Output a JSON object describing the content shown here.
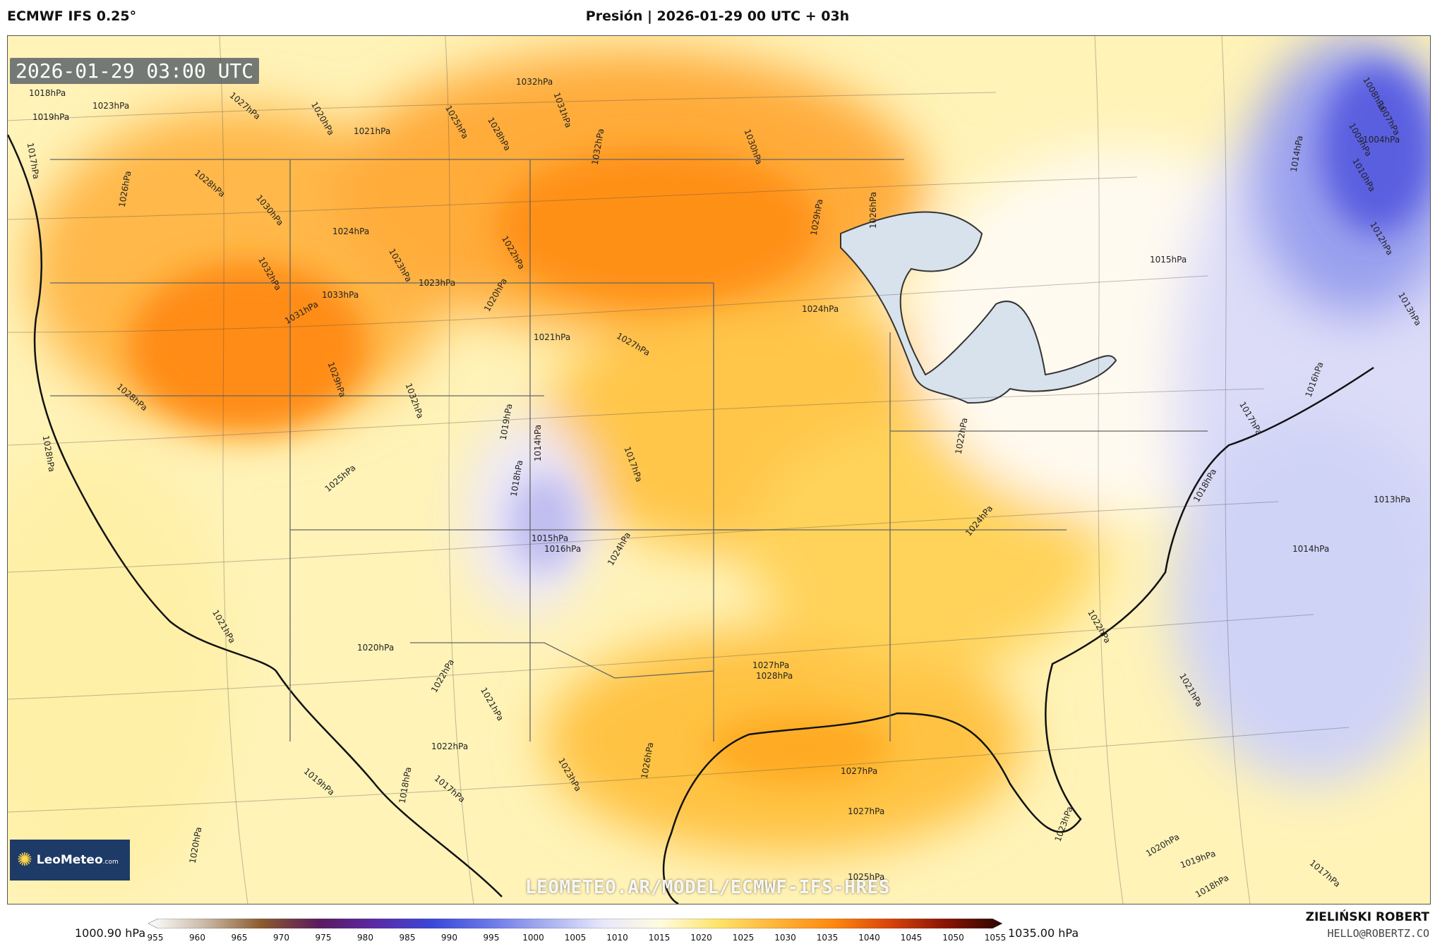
{
  "header": {
    "model": "ECMWF IFS 0.25°",
    "title": "Presión | 2026-01-29 00 UTC + 03h"
  },
  "map": {
    "valid_time": "2026-01-29 03:00 UTC",
    "watermark": "LEOMETEO.AR/MODEL/ECMWF-IFS-HRES",
    "logo_text": "LeoMeteo",
    "logo_suffix": ".com",
    "isobar_labels": [
      "1032hPa",
      "1031hPa",
      "1025hPa",
      "1028hPa",
      "1032hPa",
      "1030hPa",
      "1020hPa",
      "1021hPa",
      "1027hPa",
      "1023hPa",
      "1019hPa",
      "1018hPa",
      "1017hPa",
      "1028hPa",
      "1026hPa",
      "1030hPa",
      "1024hPa",
      "1032hPa",
      "1031hPa",
      "1033hPa",
      "1023hPa",
      "1023hPa",
      "1022hPa",
      "1020hPa",
      "1021hPa",
      "1027hPa",
      "1029hPa",
      "1026hPa",
      "1024hPa",
      "1029hPa",
      "1032hPa",
      "1028hPa",
      "1019hPa",
      "1014hPa",
      "1017hPa",
      "1018hPa",
      "1015hPa",
      "1016hPa",
      "1025hPa",
      "1028hPa",
      "1022hPa",
      "1024hPa",
      "1027hPa",
      "1024hPa",
      "1018hPa",
      "1015hPa",
      "1014hPa",
      "1012hPa",
      "1013hPa",
      "1016hPa",
      "1017hPa",
      "1013hPa",
      "1014hPa",
      "1022hPa",
      "1021hPa",
      "1028hPa",
      "1021hPa",
      "1020hPa",
      "1022hPa",
      "1021hPa",
      "1022hPa",
      "1023hPa",
      "1026hPa",
      "1019hPa",
      "1018hPa",
      "1017hPa",
      "1020hPa",
      "1027hPa",
      "1027hPa",
      "1025hPa",
      "1023hPa",
      "1020hPa",
      "1019hPa",
      "1017hPa",
      "1018hPa",
      "1008hPa",
      "1004hPa",
      "1007hPa",
      "1009hPa",
      "1010hPa"
    ]
  },
  "colorbar": {
    "min_label": "1000.90 hPa",
    "max_label": "1035.00 hPa",
    "ticks": [
      "955",
      "960",
      "965",
      "970",
      "975",
      "980",
      "985",
      "990",
      "995",
      "1000",
      "1005",
      "1010",
      "1015",
      "1020",
      "1025",
      "1030",
      "1035",
      "1040",
      "1045",
      "1050",
      "1055"
    ],
    "stops": [
      "#ffffff",
      "#c9b9a6",
      "#8a5a2e",
      "#5a1a5e",
      "#5a2aa8",
      "#3a48d8",
      "#6a78e8",
      "#a8b0f0",
      "#e8e8fb",
      "#fffbe0",
      "#ffe46a",
      "#ffb43a",
      "#ff8a10",
      "#d8460a",
      "#8a1404",
      "#2a0600"
    ]
  },
  "footer": {
    "author": "ZIELIŃSKI ROBERT",
    "email": "HELLO@ROBERTZ.CO"
  }
}
